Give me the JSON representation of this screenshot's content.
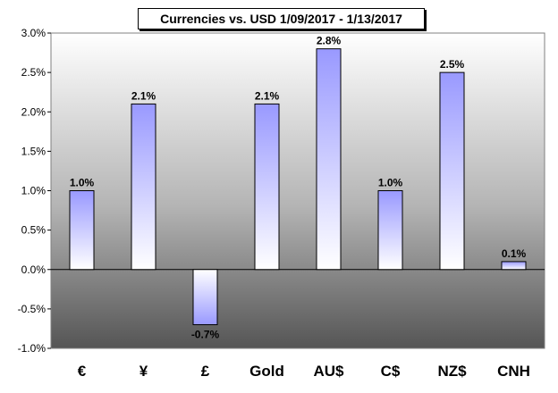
{
  "chart_data": {
    "type": "bar",
    "title": "Currencies vs. USD 1/09/2017 - 1/13/2017",
    "categories": [
      "€",
      "¥",
      "£",
      "Gold",
      "AU$",
      "C$",
      "NZ$",
      "CNH"
    ],
    "values": [
      1.0,
      2.1,
      -0.7,
      2.1,
      2.8,
      1.0,
      2.5,
      0.1
    ],
    "data_labels": [
      "1.0%",
      "2.1%",
      "-0.7%",
      "2.1%",
      "2.8%",
      "1.0%",
      "2.5%",
      "0.1%"
    ],
    "ylim": [
      -1.0,
      3.0
    ],
    "yticks": [
      3.0,
      2.5,
      2.0,
      1.5,
      1.0,
      0.5,
      0.0,
      -0.5,
      -1.0
    ],
    "ytick_labels": [
      "3.0%",
      "2.5%",
      "2.0%",
      "1.5%",
      "1.0%",
      "0.5%",
      "0.0%",
      "-0.5%",
      "-1.0%"
    ],
    "xlabel": "",
    "ylabel": "",
    "grid": false,
    "legend": "none",
    "colors": {
      "bar_top": "#9999ff",
      "bar_bottom": "#ffffff",
      "background_top": "#ffffff",
      "background_bottom": "#555555"
    }
  }
}
